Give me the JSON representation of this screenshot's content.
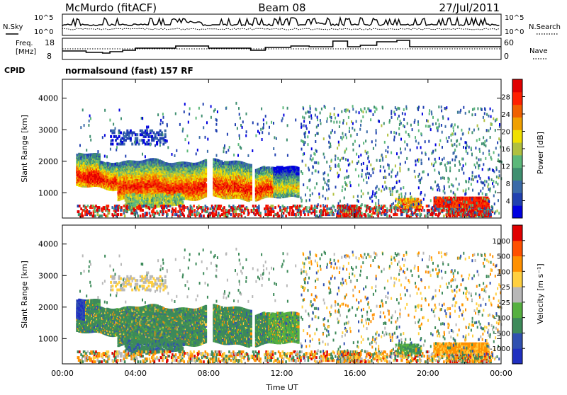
{
  "header": {
    "station": "McMurdo (fitACF)",
    "beam": "Beam 08",
    "date": "27/Jul/2011"
  },
  "status_panels": {
    "noise": {
      "left_label": "N.Sky",
      "right_label": "N.Search",
      "left_ticks": [
        "10^5",
        "10^0"
      ],
      "right_ticks": [
        "10^5",
        "10^0"
      ]
    },
    "freq": {
      "left_label_line1": "Freq.",
      "left_label_line2": "[MHz]",
      "right_label": "Nave",
      "left_ticks": [
        "18",
        "8"
      ],
      "right_ticks": [
        "60",
        "0"
      ]
    },
    "cpid": {
      "label": "CPID",
      "mode_text": "normalsound (fast) 157 RF"
    }
  },
  "colors": {
    "power_scale": [
      "#0000e0",
      "#2040b0",
      "#3a6aa8",
      "#3f8f70",
      "#5cb87a",
      "#b0c040",
      "#f0e000",
      "#f0a000",
      "#f06000",
      "#ff2000",
      "#e00000"
    ],
    "velocity_scale": [
      "#2030c0",
      "#3050b0",
      "#3d8a5a",
      "#55b040",
      "#b8b8b8",
      "#ffd040",
      "#ff9000",
      "#ff5000",
      "#e00000"
    ]
  },
  "chart_data": [
    {
      "type": "heatmap",
      "quantity": "power",
      "ylabel": "Slant Range [km]",
      "y_ticks": [
        1000,
        2000,
        3000,
        4000
      ],
      "ylim": [
        200,
        4600
      ],
      "x_ticks": [
        "00:00",
        "04:00",
        "08:00",
        "12:00",
        "16:00",
        "20:00",
        "00:00"
      ],
      "xlim_hours": [
        0,
        24
      ],
      "colorbar": {
        "label": "Power [dB]",
        "ticks": [
          4,
          8,
          12,
          16,
          20,
          24,
          28
        ],
        "range": [
          0,
          32
        ]
      }
    },
    {
      "type": "heatmap",
      "quantity": "velocity",
      "ylabel": "Slant Range [km]",
      "y_ticks": [
        1000,
        2000,
        3000,
        4000
      ],
      "ylim": [
        200,
        4600
      ],
      "x_ticks": [
        "00:00",
        "04:00",
        "08:00",
        "12:00",
        "16:00",
        "20:00",
        "00:00"
      ],
      "xlim_hours": [
        0,
        24
      ],
      "xlabel": "Time UT",
      "colorbar": {
        "label": "Velocity [m s⁻¹]",
        "ticks": [
          1000,
          500,
          100,
          25,
          -25,
          -100,
          -500,
          -1000
        ]
      }
    }
  ]
}
